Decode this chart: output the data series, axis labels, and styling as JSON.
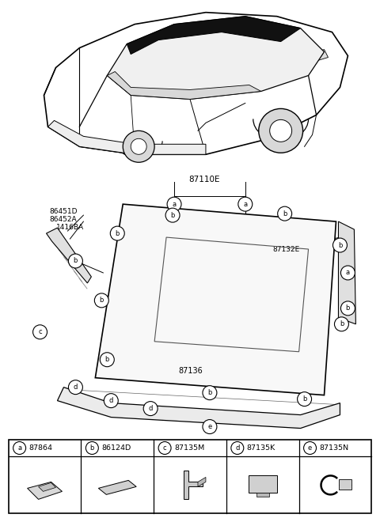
{
  "bg_color": "#ffffff",
  "legend_items": [
    {
      "letter": "a",
      "code": "87864"
    },
    {
      "letter": "b",
      "code": "86124D"
    },
    {
      "letter": "c",
      "code": "87135M"
    },
    {
      "letter": "d",
      "code": "87135K"
    },
    {
      "letter": "e",
      "code": "87135N"
    }
  ]
}
